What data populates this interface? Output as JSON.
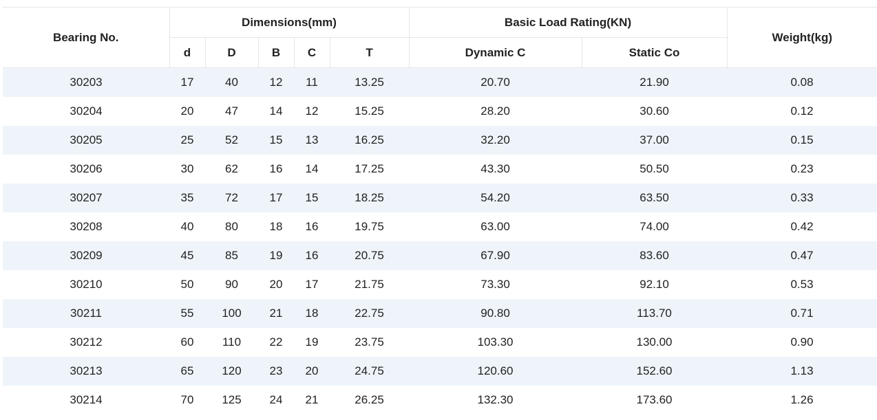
{
  "table": {
    "headers": {
      "bearing_no": "Bearing No.",
      "dimensions": "Dimensions(mm)",
      "load_rating": "Basic Load Rating(KN)",
      "weight": "Weight(kg)",
      "d": "d",
      "D": "D",
      "B": "B",
      "C": "C",
      "T": "T",
      "dynamic": "Dynamic C",
      "static": "Static Co"
    },
    "rows": [
      [
        "30203",
        "17",
        "40",
        "12",
        "11",
        "13.25",
        "20.70",
        "21.90",
        "0.08"
      ],
      [
        "30204",
        "20",
        "47",
        "14",
        "12",
        "15.25",
        "28.20",
        "30.60",
        "0.12"
      ],
      [
        "30205",
        "25",
        "52",
        "15",
        "13",
        "16.25",
        "32.20",
        "37.00",
        "0.15"
      ],
      [
        "30206",
        "30",
        "62",
        "16",
        "14",
        "17.25",
        "43.30",
        "50.50",
        "0.23"
      ],
      [
        "30207",
        "35",
        "72",
        "17",
        "15",
        "18.25",
        "54.20",
        "63.50",
        "0.33"
      ],
      [
        "30208",
        "40",
        "80",
        "18",
        "16",
        "19.75",
        "63.00",
        "74.00",
        "0.42"
      ],
      [
        "30209",
        "45",
        "85",
        "19",
        "16",
        "20.75",
        "67.90",
        "83.60",
        "0.47"
      ],
      [
        "30210",
        "50",
        "90",
        "20",
        "17",
        "21.75",
        "73.30",
        "92.10",
        "0.53"
      ],
      [
        "30211",
        "55",
        "100",
        "21",
        "18",
        "22.75",
        "90.80",
        "113.70",
        "0.71"
      ],
      [
        "30212",
        "60",
        "110",
        "22",
        "19",
        "23.75",
        "103.30",
        "130.00",
        "0.90"
      ],
      [
        "30213",
        "65",
        "120",
        "23",
        "20",
        "24.75",
        "120.60",
        "152.60",
        "1.13"
      ],
      [
        "30214",
        "70",
        "125",
        "24",
        "21",
        "26.25",
        "132.30",
        "173.60",
        "1.26"
      ]
    ]
  }
}
